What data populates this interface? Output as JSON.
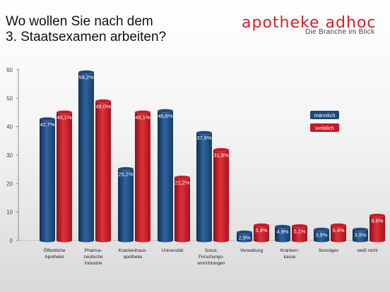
{
  "header": {
    "title_line1": "Wo wollen Sie nach dem",
    "title_line2": "3. Staatsexamen arbeiten?",
    "brand": "apotheke adhoc",
    "tagline": "Die Branche im Blick"
  },
  "colors": {
    "male": "#1d4a7c",
    "female": "#c81a25"
  },
  "chart_data": {
    "type": "bar",
    "title": "Wo wollen Sie nach dem 3. Staatsexamen arbeiten?",
    "ylim": [
      0,
      60
    ],
    "yticks": [
      0,
      10,
      20,
      30,
      40,
      50,
      60
    ],
    "grid": false,
    "legend_position": "right",
    "categories": [
      [
        "Öffentliche",
        "Apotheke"
      ],
      [
        "Pharma-",
        "zeutische",
        "Industrie"
      ],
      [
        "Krankenhaus-",
        "apotheke"
      ],
      [
        "Universität"
      ],
      [
        "Sonst.",
        "Forschungs-",
        "einrichtungen"
      ],
      [
        "Verwaltung"
      ],
      [
        "Kranken-",
        "kasse"
      ],
      [
        "Sonstiges"
      ],
      [
        "weiß nicht"
      ]
    ],
    "series": [
      {
        "name": "männlich",
        "values": [
          42.7,
          59.2,
          25.2,
          45.6,
          37.9,
          2.9,
          4.9,
          3.9,
          3.9
        ],
        "labels": [
          "42,7%",
          "59,2%",
          "25,2%",
          "45,6%",
          "37,9%",
          "2,9%",
          "4,9%",
          "3,9%",
          "3,9%"
        ]
      },
      {
        "name": "weiblich",
        "values": [
          45.1,
          49.0,
          45.1,
          22.2,
          31.9,
          5.4,
          5.1,
          5.4,
          8.8
        ],
        "labels": [
          "45,1%",
          "49,0%",
          "45,1%",
          "22,2%",
          "31,9%",
          "5,4%",
          "5,1%",
          "5,4%",
          "8,8%"
        ]
      }
    ]
  }
}
